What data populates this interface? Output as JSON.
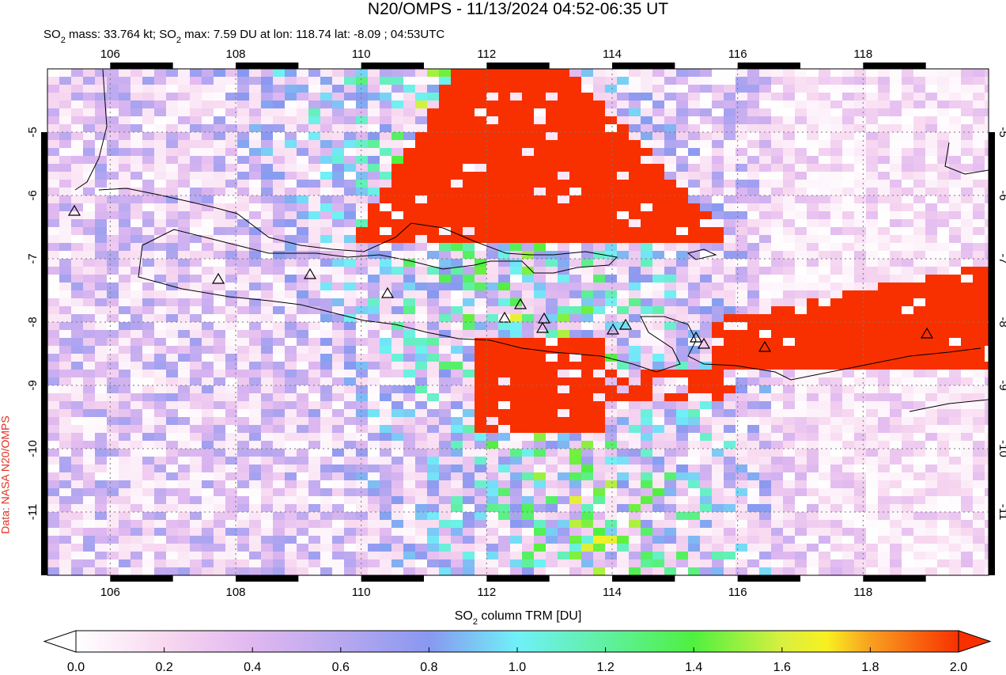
{
  "header": {
    "title": "N20/OMPS - 11/13/2024 04:52-06:35 UT",
    "subtitle": [
      "SO",
      "2",
      " mass: 33.764 kt; SO",
      "2",
      " max: 7.59 DU at lon: 118.74 lat: -8.09 ; 04:53UTC"
    ]
  },
  "map": {
    "xlim": [
      105,
      120
    ],
    "ylim": [
      -12,
      -4
    ],
    "xticks": [
      106,
      108,
      110,
      112,
      114,
      116,
      118
    ],
    "yticks": [
      -5,
      -6,
      -7,
      -8,
      -9,
      -10,
      -11
    ],
    "credit": "Data: NASA N20/OMPS"
  },
  "colorbar": {
    "label": [
      "SO",
      "2",
      " column TRM [DU]"
    ],
    "lim": [
      0,
      2
    ],
    "ticks": [
      {
        "value": 0,
        "label": "0.0"
      },
      {
        "value": 0.2,
        "label": "0.2"
      },
      {
        "value": 0.4,
        "label": "0.4"
      },
      {
        "value": 0.6,
        "label": "0.6"
      },
      {
        "value": 0.8,
        "label": "0.8"
      },
      {
        "value": 1,
        "label": "1.0"
      },
      {
        "value": 1.2,
        "label": "1.2"
      },
      {
        "value": 1.4,
        "label": "1.4"
      },
      {
        "value": 1.6,
        "label": "1.6"
      },
      {
        "value": 1.8,
        "label": "1.8"
      },
      {
        "value": 2,
        "label": "2.0"
      }
    ]
  }
}
